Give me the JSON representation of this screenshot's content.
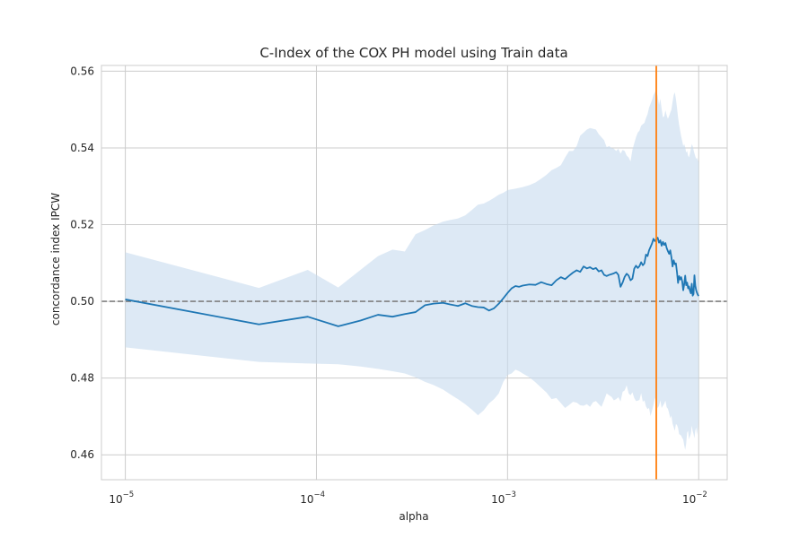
{
  "chart_data": {
    "type": "line",
    "title": "C-Index of the COX PH model using Train data",
    "xlabel": "alpha",
    "ylabel": "concordance index IPCW",
    "xscale": "log",
    "xlim": [
      7.5e-06,
      0.0141
    ],
    "ylim": [
      0.4535,
      0.5615
    ],
    "grid": true,
    "x_ticks": [
      {
        "value": 1e-05,
        "base": "10",
        "exp": "−5"
      },
      {
        "value": 0.0001,
        "base": "10",
        "exp": "−4"
      },
      {
        "value": 0.001,
        "base": "10",
        "exp": "−3"
      },
      {
        "value": 0.01,
        "base": "10",
        "exp": "−2"
      }
    ],
    "y_ticks": [
      {
        "value": 0.46,
        "label": "0.46"
      },
      {
        "value": 0.48,
        "label": "0.48"
      },
      {
        "value": 0.5,
        "label": "0.50"
      },
      {
        "value": 0.52,
        "label": "0.52"
      },
      {
        "value": 0.54,
        "label": "0.54"
      },
      {
        "value": 0.56,
        "label": "0.56"
      }
    ],
    "reference_line": {
      "y": 0.5,
      "style": "dashed",
      "color": "#808080"
    },
    "vertical_line": {
      "x": 0.006,
      "color": "#ff7f0e"
    },
    "colors": {
      "line": "#1f77b4",
      "band": "#c6dbef",
      "grid": "#cccccc",
      "frame": "#cccccc"
    },
    "series": [
      {
        "x": [
          1e-05,
          5e-05,
          9e-05,
          0.00013,
          0.00017,
          0.00021,
          0.00025,
          0.00029,
          0.00033,
          0.00037,
          0.00041,
          0.00046,
          0.0005,
          0.00055,
          0.0006,
          0.00065,
          0.0007,
          0.00075,
          0.0008,
          0.00085,
          0.0009,
          0.00095,
          0.001,
          0.00105,
          0.0011,
          0.00115,
          0.0012,
          0.0013,
          0.0014,
          0.0015,
          0.0016,
          0.0017,
          0.0018,
          0.0019,
          0.002,
          0.0021,
          0.0022,
          0.0023,
          0.0024,
          0.0025,
          0.0026,
          0.0027,
          0.0028,
          0.0029,
          0.003,
          0.0031,
          0.0032,
          0.0033,
          0.0034,
          0.0035,
          0.0036,
          0.0037,
          0.0038,
          0.0039,
          0.004,
          0.0041,
          0.0042,
          0.0043,
          0.0044,
          0.0045,
          0.0046,
          0.0047,
          0.0048,
          0.0049,
          0.005,
          0.0051,
          0.0052,
          0.0053,
          0.0054,
          0.0055,
          0.0056,
          0.0057,
          0.0058,
          0.0059,
          0.006,
          0.0061,
          0.0062,
          0.0063,
          0.0064,
          0.0065,
          0.0066,
          0.0067,
          0.0068,
          0.0069,
          0.007,
          0.0071,
          0.0072,
          0.0073,
          0.0074,
          0.0075,
          0.0076,
          0.0077,
          0.0078,
          0.0079,
          0.008,
          0.0081,
          0.0082,
          0.0083,
          0.0084,
          0.0085,
          0.0086,
          0.0087,
          0.0088,
          0.0089,
          0.009,
          0.0091,
          0.0092,
          0.0093,
          0.0094,
          0.0095,
          0.0096,
          0.0097,
          0.0098,
          0.0099,
          0.01
        ],
        "mean": [
          0.5005,
          0.494,
          0.496,
          0.4935,
          0.495,
          0.4965,
          0.496,
          0.4967,
          0.4972,
          0.499,
          0.4994,
          0.4996,
          0.4992,
          0.4988,
          0.4995,
          0.4988,
          0.4985,
          0.4984,
          0.4976,
          0.4982,
          0.4994,
          0.5008,
          0.5022,
          0.5034,
          0.504,
          0.5038,
          0.5041,
          0.5044,
          0.5043,
          0.505,
          0.5045,
          0.5042,
          0.5055,
          0.5063,
          0.5058,
          0.5067,
          0.5075,
          0.5081,
          0.5077,
          0.5091,
          0.5086,
          0.5089,
          0.5084,
          0.5087,
          0.5078,
          0.5081,
          0.5069,
          0.5066,
          0.5069,
          0.5071,
          0.5073,
          0.5076,
          0.5069,
          0.5038,
          0.5049,
          0.5064,
          0.5072,
          0.5067,
          0.5055,
          0.5059,
          0.5085,
          0.5093,
          0.5087,
          0.5092,
          0.5102,
          0.5094,
          0.5099,
          0.5122,
          0.5118,
          0.5133,
          0.5142,
          0.5151,
          0.5163,
          0.5157,
          0.5162,
          0.5166,
          0.5153,
          0.5159,
          0.5145,
          0.5155,
          0.5147,
          0.5152,
          0.5139,
          0.5131,
          0.5124,
          0.5133,
          0.5115,
          0.5091,
          0.5107,
          0.5097,
          0.5099,
          0.5076,
          0.5048,
          0.5066,
          0.5057,
          0.5063,
          0.5052,
          0.5029,
          0.5045,
          0.5067,
          0.5042,
          0.5049,
          0.5034,
          0.5039,
          0.5028,
          0.5021,
          0.5046,
          0.5015,
          0.5019,
          0.5068,
          0.5041,
          0.5029,
          0.5022,
          0.5017,
          0.5014
        ],
        "lower": [
          0.488,
          0.4842,
          0.4838,
          0.4836,
          0.483,
          0.4824,
          0.4818,
          0.4812,
          0.4802,
          0.479,
          0.4782,
          0.477,
          0.4758,
          0.4745,
          0.4732,
          0.4718,
          0.4703,
          0.4716,
          0.4734,
          0.4745,
          0.476,
          0.479,
          0.4808,
          0.4812,
          0.4822,
          0.4818,
          0.4812,
          0.4802,
          0.4789,
          0.4775,
          0.4762,
          0.4745,
          0.4748,
          0.4735,
          0.4722,
          0.473,
          0.4738,
          0.4736,
          0.4729,
          0.4728,
          0.4732,
          0.4725,
          0.4737,
          0.474,
          0.4732,
          0.4725,
          0.4742,
          0.476,
          0.4755,
          0.4751,
          0.4742,
          0.4745,
          0.475,
          0.4739,
          0.4764,
          0.4768,
          0.4781,
          0.476,
          0.4755,
          0.4763,
          0.4748,
          0.474,
          0.4741,
          0.4743,
          0.4761,
          0.4738,
          0.4742,
          0.4726,
          0.4719,
          0.4722,
          0.4701,
          0.4715,
          0.473,
          0.4749,
          0.4735,
          0.4721,
          0.4728,
          0.4742,
          0.4722,
          0.4728,
          0.4733,
          0.4741,
          0.4724,
          0.472,
          0.4709,
          0.4695,
          0.4702,
          0.4681,
          0.4672,
          0.4662,
          0.468,
          0.4678,
          0.467,
          0.4654,
          0.4652,
          0.465,
          0.4644,
          0.464,
          0.4625,
          0.4613,
          0.4629,
          0.4658,
          0.4662,
          0.464,
          0.4648,
          0.4655,
          0.4676,
          0.4662,
          0.4654,
          0.4643,
          0.4663,
          0.4671,
          0.4652,
          0.4668,
          0.469
        ],
        "upper": [
          0.5128,
          0.5035,
          0.5082,
          0.5036,
          0.5082,
          0.5118,
          0.5135,
          0.513,
          0.5175,
          0.5186,
          0.5198,
          0.5208,
          0.5212,
          0.5216,
          0.5224,
          0.5238,
          0.5252,
          0.5255,
          0.5262,
          0.527,
          0.5278,
          0.5283,
          0.529,
          0.5292,
          0.5294,
          0.5296,
          0.5298,
          0.5303,
          0.531,
          0.532,
          0.533,
          0.5342,
          0.5348,
          0.5355,
          0.5375,
          0.5392,
          0.5392,
          0.5405,
          0.5432,
          0.544,
          0.5448,
          0.5452,
          0.545,
          0.5448,
          0.5436,
          0.5428,
          0.542,
          0.5402,
          0.5405,
          0.54,
          0.5398,
          0.5392,
          0.5398,
          0.5385,
          0.5395,
          0.5392,
          0.538,
          0.5375,
          0.5365,
          0.5395,
          0.5412,
          0.5428,
          0.544,
          0.5445,
          0.5458,
          0.5462,
          0.5465,
          0.5478,
          0.5488,
          0.5505,
          0.5515,
          0.5525,
          0.5538,
          0.5545,
          0.5552,
          0.5535,
          0.5512,
          0.5528,
          0.5502,
          0.548,
          0.5482,
          0.5498,
          0.5485,
          0.5476,
          0.5483,
          0.5492,
          0.55,
          0.552,
          0.5538,
          0.5545,
          0.5528,
          0.5505,
          0.548,
          0.546,
          0.5445,
          0.543,
          0.5418,
          0.5405,
          0.541,
          0.5402,
          0.5388,
          0.5392,
          0.538,
          0.5375,
          0.5386,
          0.5398,
          0.541,
          0.5405,
          0.5395,
          0.5386,
          0.5378,
          0.5372,
          0.5374,
          0.5368,
          0.5362
        ]
      }
    ]
  }
}
